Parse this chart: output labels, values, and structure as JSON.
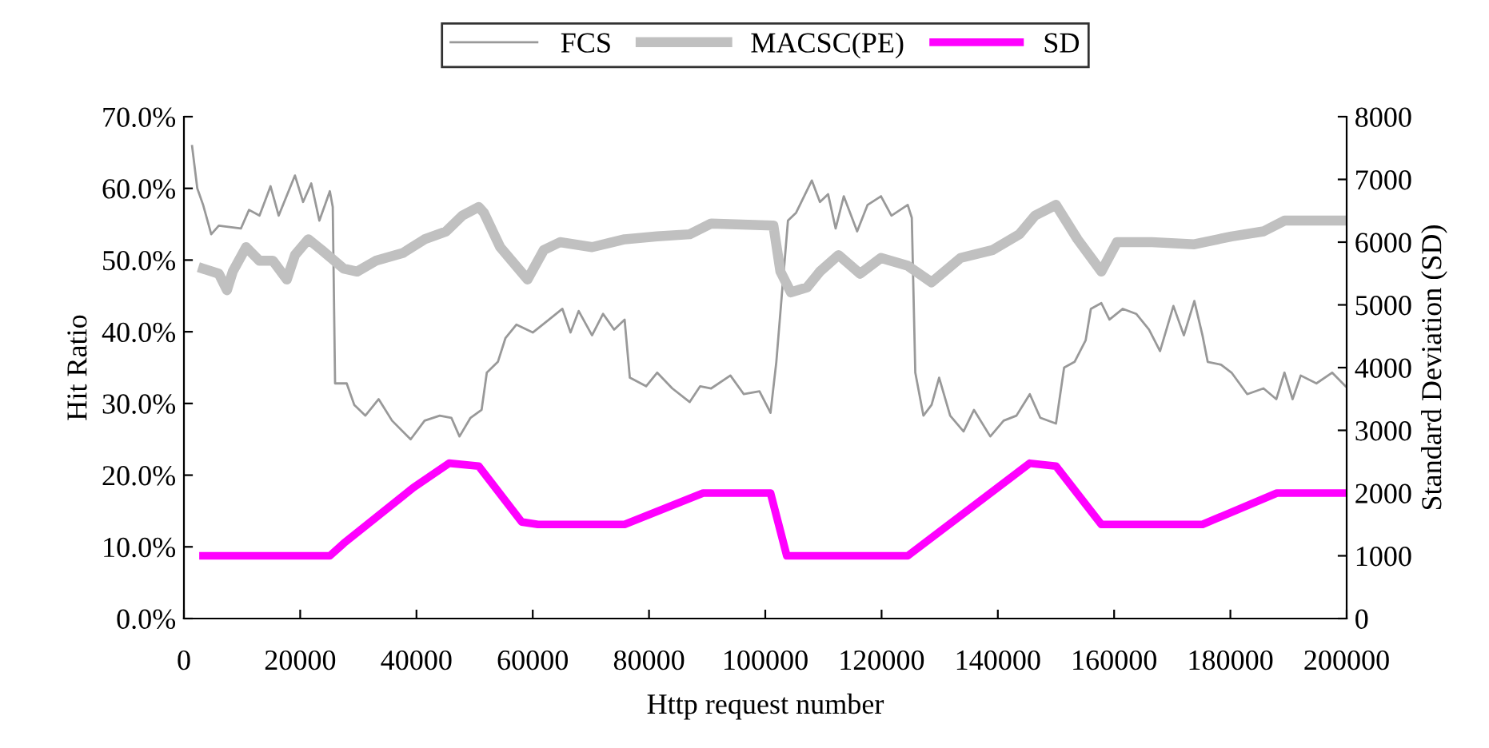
{
  "chart_data": {
    "type": "line",
    "xlabel": "Http request number",
    "ylabel": "Hit Ratio",
    "y2label": "Standard Deviation (SD)",
    "legend": "top",
    "grid": false,
    "marker": "none",
    "line_style": "solid",
    "xlim": [
      0,
      200000
    ],
    "xticks": [
      0,
      20000,
      40000,
      60000,
      80000,
      100000,
      120000,
      140000,
      160000,
      180000,
      200000
    ],
    "ylim": [
      0,
      70
    ],
    "yticks": [
      {
        "value": 0,
        "label": "0.0%"
      },
      {
        "value": 10,
        "label": "10.0%"
      },
      {
        "value": 20,
        "label": "20.0%"
      },
      {
        "value": 30,
        "label": "30.0%"
      },
      {
        "value": 40,
        "label": "40.0%"
      },
      {
        "value": 50,
        "label": "50.0%"
      },
      {
        "value": 60,
        "label": "60.0%"
      },
      {
        "value": 70,
        "label": "70.0%"
      }
    ],
    "y2lim": [
      0,
      8000
    ],
    "y2ticks": [
      0,
      1000,
      2000,
      3000,
      4000,
      5000,
      6000,
      7000,
      8000
    ],
    "series": [
      {
        "name": "FCS",
        "color": "#999999",
        "x": [
          1400,
          2300,
          3300,
          4700,
          6000,
          9800,
          11200,
          13000,
          14900,
          16300,
          19100,
          20500,
          21900,
          23300,
          25100,
          25600,
          26000,
          28000,
          29300,
          31200,
          33500,
          35800,
          39000,
          41400,
          44000,
          46000,
          47400,
          49300,
          51200,
          52100,
          54000,
          55300,
          57200,
          60000,
          62800,
          65100,
          66500,
          67900,
          70200,
          72100,
          74000,
          75800,
          76700,
          79500,
          81400,
          84000,
          87000,
          88800,
          90700,
          94000,
          96300,
          99000,
          100900,
          101900,
          102800,
          103900,
          105300,
          108000,
          109400,
          110800,
          112100,
          113500,
          115800,
          117600,
          119900,
          121700,
          124500,
          125200,
          125800,
          127200,
          128600,
          129900,
          131800,
          134100,
          135900,
          138700,
          141000,
          143200,
          145500,
          147300,
          150000,
          151400,
          153200,
          155100,
          156000,
          157800,
          159200,
          161500,
          163800,
          166000,
          167900,
          170200,
          172000,
          173800,
          175200,
          176100,
          178400,
          180200,
          182900,
          185700,
          187900,
          189300,
          190700,
          192100,
          194800,
          197500,
          199800
        ],
        "values": [
          65.9,
          60.0,
          57.7,
          53.6,
          54.8,
          54.4,
          57.0,
          56.2,
          60.3,
          56.2,
          61.8,
          58.1,
          60.7,
          55.5,
          59.6,
          57.4,
          32.8,
          32.8,
          29.8,
          28.3,
          30.6,
          27.6,
          25.0,
          27.6,
          28.3,
          28.0,
          25.4,
          28.0,
          29.1,
          34.3,
          35.8,
          39.1,
          41.0,
          39.9,
          41.7,
          43.2,
          39.9,
          42.9,
          39.5,
          42.5,
          40.3,
          41.7,
          33.6,
          32.4,
          34.3,
          32.1,
          30.2,
          32.4,
          32.1,
          33.9,
          31.3,
          31.7,
          28.7,
          35.8,
          44.7,
          55.5,
          56.6,
          61.1,
          58.1,
          59.2,
          54.4,
          58.9,
          54.0,
          57.7,
          58.9,
          56.2,
          57.7,
          55.9,
          34.3,
          28.3,
          29.8,
          33.6,
          28.3,
          26.1,
          29.1,
          25.4,
          27.6,
          28.3,
          31.3,
          28.0,
          27.2,
          35.0,
          35.8,
          38.8,
          43.2,
          44.0,
          41.7,
          43.2,
          42.5,
          40.3,
          37.3,
          43.6,
          39.5,
          44.3,
          39.5,
          35.8,
          35.4,
          34.3,
          31.3,
          32.1,
          30.6,
          34.3,
          30.6,
          33.9,
          32.8,
          34.3,
          32.4
        ]
      },
      {
        "name": "MACSC(PE)",
        "color": "#c0c0c0",
        "x": [
          3300,
          6000,
          7400,
          8400,
          10700,
          13000,
          15300,
          17700,
          19100,
          21400,
          23700,
          27500,
          29800,
          33000,
          37700,
          41400,
          45100,
          47900,
          50700,
          51600,
          54400,
          59100,
          61900,
          64700,
          70200,
          75800,
          81400,
          87000,
          90700,
          101400,
          102600,
          104400,
          107200,
          109400,
          112600,
          116300,
          119900,
          124500,
          128600,
          133600,
          139100,
          143700,
          146400,
          150000,
          153700,
          157800,
          160500,
          166500,
          173800,
          180200,
          185700,
          189300,
          199800
        ],
        "values": [
          48.8,
          48.1,
          45.8,
          48.4,
          51.8,
          49.9,
          49.9,
          47.3,
          50.7,
          52.9,
          51.4,
          48.8,
          48.4,
          49.9,
          51.0,
          52.9,
          54.0,
          56.2,
          57.4,
          56.6,
          51.8,
          47.3,
          51.4,
          52.5,
          51.8,
          52.9,
          53.3,
          53.6,
          55.1,
          54.8,
          48.4,
          45.5,
          46.2,
          48.4,
          50.7,
          48.1,
          50.3,
          49.2,
          46.9,
          50.3,
          51.4,
          53.6,
          56.2,
          57.7,
          52.9,
          48.4,
          52.5,
          52.5,
          52.2,
          53.3,
          54.0,
          55.5,
          55.5
        ]
      },
      {
        "name": "SD",
        "color": "#ff00ff",
        "axis": "y2",
        "x": [
          3300,
          25100,
          27500,
          39500,
          45600,
          50700,
          58100,
          60900,
          75800,
          89300,
          100900,
          103700,
          124500,
          145500,
          150000,
          157800,
          175200,
          188000,
          199800
        ],
        "values": [
          1000,
          1000,
          1200,
          2090,
          2475,
          2430,
          1540,
          1500,
          1500,
          2000,
          2000,
          1000,
          1000,
          2475,
          2430,
          1500,
          1500,
          2000,
          2000
        ]
      }
    ]
  }
}
